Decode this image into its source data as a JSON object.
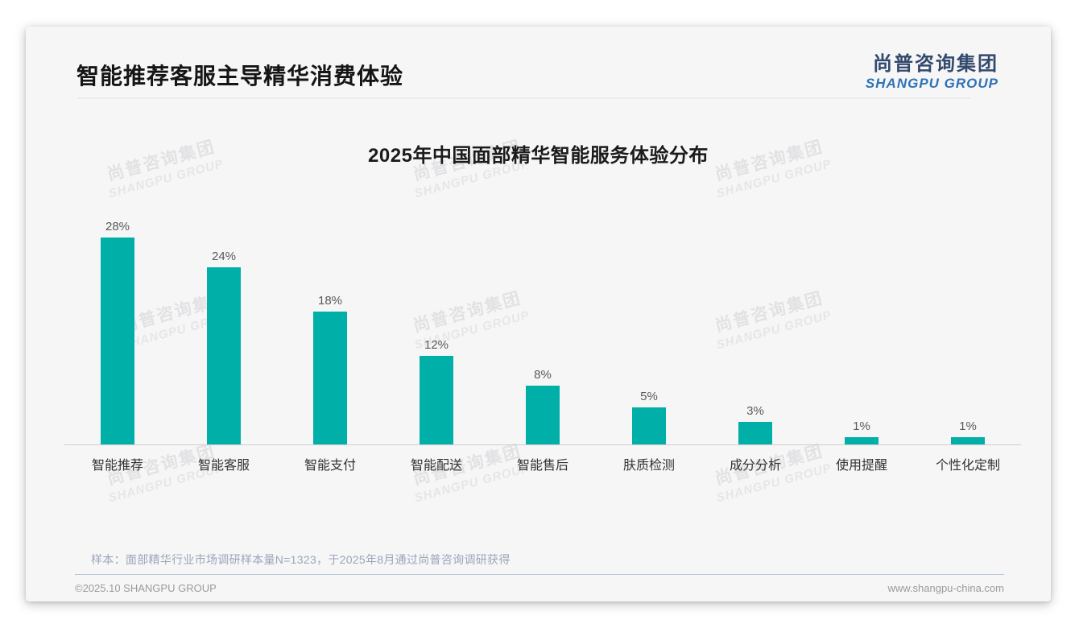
{
  "page": {
    "header_title": "智能推荐客服主导精华消费体验",
    "logo": {
      "cn": "尚普咨询集团",
      "en": "SHANGPU GROUP"
    },
    "watermark": {
      "cn": "尚普咨询集团",
      "en": "SHANGPU GROUP"
    },
    "footer": {
      "note": "样本：面部精华行业市场调研样本量N=1323，于2025年8月通过尚普咨询调研获得",
      "copyright": "©2025.10 SHANGPU GROUP",
      "website": "www.shangpu-china.com"
    }
  },
  "chart_data": {
    "type": "bar",
    "title": "2025年中国面部精华智能服务体验分布",
    "categories": [
      "智能推荐",
      "智能客服",
      "智能支付",
      "智能配送",
      "智能售后",
      "肤质检测",
      "成分分析",
      "使用提醒",
      "个性化定制"
    ],
    "values": [
      28,
      24,
      18,
      12,
      8,
      5,
      3,
      1,
      1
    ],
    "unit": "%",
    "value_label_position": "above",
    "bar_color": "#00b0a8",
    "xlabel": "",
    "ylabel": "",
    "ylim": [
      0,
      30
    ],
    "grid": false,
    "legend": "none",
    "axis_line_color": "#cfcfcf"
  }
}
